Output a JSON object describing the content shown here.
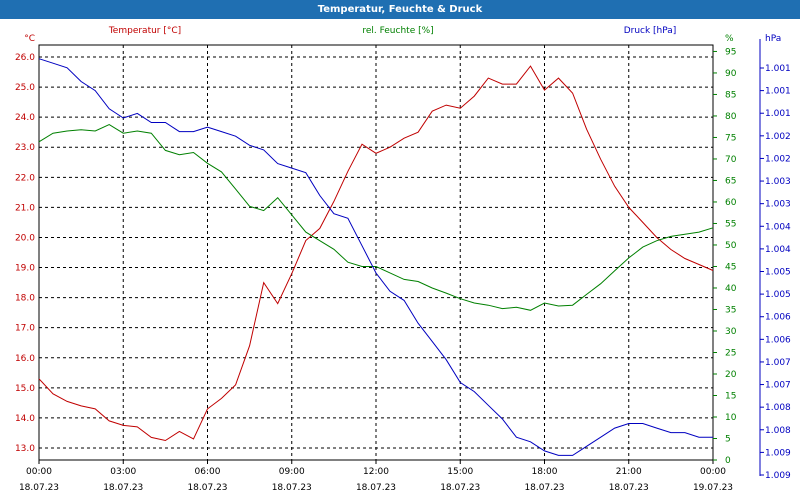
{
  "window": {
    "title": "Temperatur, Feuchte & Druck"
  },
  "colors": {
    "title_bg": "#1f6fb2",
    "temperature": "#c00000",
    "humidity": "#008000",
    "pressure": "#0000c0"
  },
  "chart_data": {
    "type": "line",
    "title": "Temperatur, Feuchte & Druck",
    "grid": true,
    "x_range": [
      "18.07.23 00:00",
      "19.07.23 00:00"
    ],
    "x_ticks": [
      {
        "time": "00:00",
        "date": "18.07.23"
      },
      {
        "time": "03:00",
        "date": "18.07.23"
      },
      {
        "time": "06:00",
        "date": "18.07.23"
      },
      {
        "time": "09:00",
        "date": "18.07.23"
      },
      {
        "time": "12:00",
        "date": "18.07.23"
      },
      {
        "time": "15:00",
        "date": "18.07.23"
      },
      {
        "time": "18:00",
        "date": "18.07.23"
      },
      {
        "time": "21:00",
        "date": "18.07.23"
      },
      {
        "time": "00:00",
        "date": "19.07.23"
      }
    ],
    "x_hours": [
      0,
      0.5,
      1,
      1.5,
      2,
      2.5,
      3,
      3.5,
      4,
      4.5,
      5,
      5.5,
      6,
      6.5,
      7,
      7.5,
      8,
      8.5,
      9,
      9.5,
      10,
      10.5,
      11,
      11.5,
      12,
      12.5,
      13,
      13.5,
      14,
      14.5,
      15,
      15.5,
      16,
      16.5,
      17,
      17.5,
      18,
      18.5,
      19,
      19.5,
      20,
      20.5,
      21,
      21.5,
      22,
      22.5,
      23,
      23.5,
      24
    ],
    "axes": {
      "temperature": {
        "label": "Temperatur [°C]",
        "unit": "°C",
        "side": "left",
        "range": [
          12.6,
          26.4
        ],
        "ticks": [
          "13.0",
          "14.0",
          "15.0",
          "16.0",
          "17.0",
          "18.0",
          "19.0",
          "20.0",
          "21.0",
          "22.0",
          "23.0",
          "24.0",
          "25.0",
          "26.0"
        ]
      },
      "humidity": {
        "label": "rel. Feuchte [%]",
        "unit": "%",
        "side": "right-inner",
        "range": [
          0,
          96.5
        ],
        "ticks": [
          "0",
          "5",
          "10",
          "15",
          "20",
          "25",
          "30",
          "35",
          "40",
          "45",
          "50",
          "55",
          "60",
          "65",
          "70",
          "75",
          "80",
          "85",
          "90",
          "95"
        ]
      },
      "pressure": {
        "label": "Druck [hPa]",
        "unit": "hPa",
        "side": "right-outer",
        "range": [
          1.0006,
          1.0097
        ],
        "ticks": [
          "1.001",
          "1.001",
          "1.001",
          "1.002",
          "1.002",
          "1.003",
          "1.003",
          "1.004",
          "1.004",
          "1.005",
          "1.005",
          "1.006",
          "1.006",
          "1.007",
          "1.007",
          "1.008",
          "1.008",
          "1.009",
          "1.009"
        ]
      }
    },
    "series": [
      {
        "name": "Temperatur [°C]",
        "axis": "temperature",
        "values": [
          15.3,
          14.8,
          14.55,
          14.4,
          14.3,
          13.9,
          13.75,
          13.7,
          13.35,
          13.25,
          13.55,
          13.3,
          14.3,
          14.65,
          15.1,
          16.4,
          18.5,
          17.8,
          18.8,
          19.9,
          20.3,
          21.2,
          22.2,
          23.1,
          22.8,
          23.0,
          23.3,
          23.5,
          24.2,
          24.4,
          24.3,
          24.7,
          25.3,
          25.1,
          25.1,
          25.7,
          24.9,
          25.3,
          24.8,
          23.6,
          22.6,
          21.7,
          21.0,
          20.5,
          20.0,
          19.6,
          19.3,
          19.1,
          18.9
        ]
      },
      {
        "name": "rel. Feuchte [%]",
        "axis": "humidity",
        "values": [
          74,
          76,
          76.5,
          76.8,
          76.5,
          78,
          76,
          76.5,
          76,
          72,
          71,
          71.5,
          69,
          67,
          63,
          59,
          58,
          61,
          57,
          53,
          51,
          49,
          46,
          45,
          45,
          43.5,
          42,
          41.5,
          40,
          38.8,
          37.5,
          36.5,
          36,
          35.2,
          35.5,
          34.8,
          36.5,
          35.8,
          36,
          38.5,
          41,
          44,
          47,
          49.5,
          51,
          52,
          52.5,
          53,
          54
        ]
      },
      {
        "name": "Druck [hPa]",
        "axis": "pressure",
        "values": [
          1.0094,
          1.0093,
          1.0092,
          1.0089,
          1.0087,
          1.0083,
          1.0081,
          1.0082,
          1.008,
          1.008,
          1.0078,
          1.0078,
          1.0079,
          1.0078,
          1.0077,
          1.0075,
          1.0074,
          1.0071,
          1.007,
          1.0069,
          1.0064,
          1.006,
          1.0059,
          1.0053,
          1.0047,
          1.0043,
          1.0041,
          1.0036,
          1.0032,
          1.0028,
          1.0023,
          1.0021,
          1.0018,
          1.0015,
          1.0011,
          1.001,
          1.0008,
          1.0007,
          1.0007,
          1.0009,
          1.0011,
          1.0013,
          1.0014,
          1.0014,
          1.0013,
          1.0012,
          1.0012,
          1.0011,
          1.0011
        ]
      }
    ]
  }
}
